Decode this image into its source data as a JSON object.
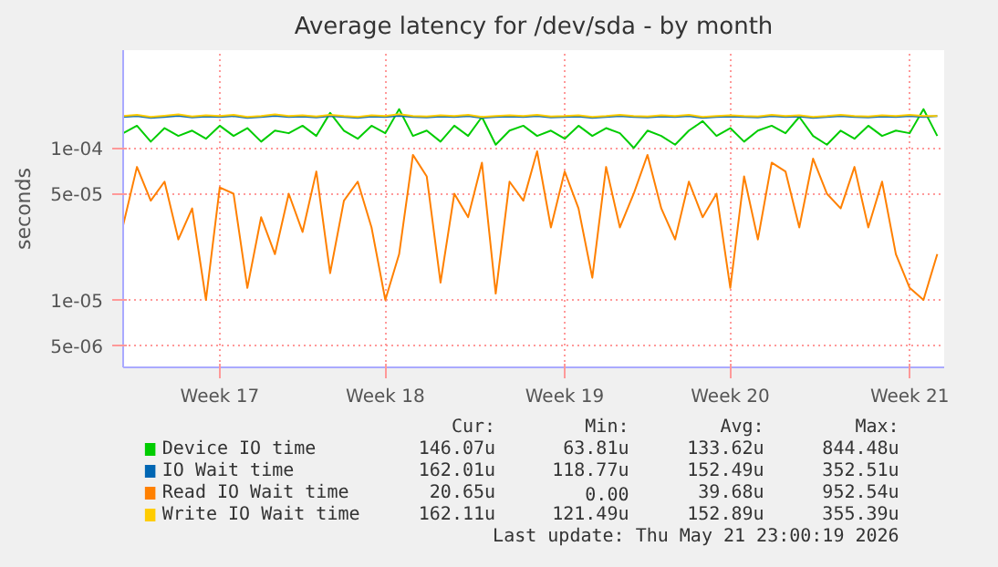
{
  "chart_data": {
    "type": "line",
    "title": "Average latency for /dev/sda - by month",
    "ylabel": "seconds",
    "categories": [
      null,
      null,
      null,
      null,
      null,
      null,
      null,
      "Week 17",
      null,
      null,
      null,
      null,
      null,
      null,
      null,
      null,
      null,
      null,
      null,
      "Week 18",
      null,
      null,
      null,
      null,
      null,
      null,
      null,
      null,
      null,
      null,
      null,
      null,
      "Week 19",
      null,
      null,
      null,
      null,
      null,
      null,
      null,
      null,
      null,
      null,
      null,
      "Week 20",
      null,
      null,
      null,
      null,
      null,
      null,
      null,
      null,
      null,
      null,
      null,
      null,
      "Week 21",
      null,
      null
    ],
    "series": [
      {
        "name": "Device IO time",
        "color": "#00cc00",
        "values": [
          0.000125,
          0.00014,
          0.00011,
          0.000135,
          0.00012,
          0.00013,
          0.000115,
          0.00014,
          0.00012,
          0.000135,
          0.00011,
          0.00013,
          0.000125,
          0.00014,
          0.00012,
          0.00017,
          0.00013,
          0.000115,
          0.00014,
          0.000125,
          0.00018,
          0.00012,
          0.00013,
          0.00011,
          0.00014,
          0.00012,
          0.00016,
          0.000105,
          0.00013,
          0.00014,
          0.00012,
          0.00013,
          0.000115,
          0.00014,
          0.00012,
          0.000135,
          0.000125,
          0.0001,
          0.00013,
          0.00012,
          0.000105,
          0.00013,
          0.00015,
          0.00012,
          0.000135,
          0.00011,
          0.00013,
          0.00014,
          0.000125,
          0.00016,
          0.00012,
          0.000105,
          0.00013,
          0.000115,
          0.00014,
          0.00012,
          0.00013,
          0.000125,
          0.00018,
          0.00012
        ]
      },
      {
        "name": "IO Wait time",
        "color": "#0066b3",
        "values": [
          0.00016,
          0.000162,
          0.000158,
          0.00016,
          0.000163,
          0.000159,
          0.000161,
          0.00016,
          0.000162,
          0.000158,
          0.00016,
          0.000163,
          0.00016,
          0.000161,
          0.000159,
          0.000162,
          0.00016,
          0.000158,
          0.000161,
          0.00016,
          0.000163,
          0.00016,
          0.000159,
          0.000161,
          0.00016,
          0.000162,
          0.000158,
          0.00016,
          0.000161,
          0.00016,
          0.000162,
          0.000159,
          0.00016,
          0.000161,
          0.000158,
          0.00016,
          0.000162,
          0.00016,
          0.000159,
          0.000161,
          0.00016,
          0.000162,
          0.000158,
          0.00016,
          0.000161,
          0.00016,
          0.000159,
          0.000162,
          0.00016,
          0.000161,
          0.000158,
          0.00016,
          0.000162,
          0.00016,
          0.000159,
          0.000161,
          0.00016,
          0.000162,
          0.00016,
          0.000162
        ]
      },
      {
        "name": "Read IO Wait time",
        "color": "#ff8000",
        "values": [
          3.1e-05,
          7.5e-05,
          4.5e-05,
          6e-05,
          2.5e-05,
          4e-05,
          1e-05,
          5.5e-05,
          5e-05,
          1.2e-05,
          3.5e-05,
          2e-05,
          5e-05,
          2.8e-05,
          7e-05,
          1.5e-05,
          4.5e-05,
          6e-05,
          3e-05,
          1e-05,
          2e-05,
          9e-05,
          6.5e-05,
          1.3e-05,
          5e-05,
          3.5e-05,
          8e-05,
          1.1e-05,
          6e-05,
          4.5e-05,
          9.5e-05,
          3e-05,
          7e-05,
          4e-05,
          1.4e-05,
          7.5e-05,
          3e-05,
          5e-05,
          9e-05,
          4e-05,
          2.5e-05,
          6e-05,
          3.5e-05,
          5e-05,
          1.2e-05,
          6.5e-05,
          2.5e-05,
          8e-05,
          7e-05,
          3e-05,
          8.5e-05,
          5e-05,
          4e-05,
          7.5e-05,
          3e-05,
          6e-05,
          2e-05,
          1.2e-05,
          1e-05,
          2e-05
        ]
      },
      {
        "name": "Write IO Wait time",
        "color": "#ffcc00",
        "values": [
          0.000162,
          0.000165,
          0.00016,
          0.000163,
          0.000166,
          0.000161,
          0.000164,
          0.000162,
          0.000165,
          0.00016,
          0.000162,
          0.000166,
          0.000162,
          0.000164,
          0.000161,
          0.000165,
          0.000162,
          0.00016,
          0.000164,
          0.000162,
          0.000167,
          0.000162,
          0.000161,
          0.000164,
          0.000162,
          0.000165,
          0.00016,
          0.000162,
          0.000164,
          0.000162,
          0.000165,
          0.000161,
          0.000162,
          0.000164,
          0.00016,
          0.000162,
          0.000165,
          0.000162,
          0.000161,
          0.000164,
          0.000162,
          0.000165,
          0.00016,
          0.000162,
          0.000164,
          0.000162,
          0.000161,
          0.000165,
          0.000162,
          0.000164,
          0.00016,
          0.000162,
          0.000165,
          0.000162,
          0.000161,
          0.000164,
          0.000162,
          0.000165,
          0.000162,
          0.000162
        ]
      }
    ],
    "log": "y",
    "grid": true,
    "legend": "bottom",
    "ylim": [
      3.6e-06,
      0.00044
    ],
    "yticks": [
      {
        "value": 5e-06,
        "label": "5e-06"
      },
      {
        "value": 1e-05,
        "label": "1e-05"
      },
      {
        "value": 5e-05,
        "label": "5e-05"
      },
      {
        "value": 0.0001,
        "label": "1e-04"
      }
    ],
    "annotations": [
      "Cur:",
      "Min:",
      "Avg:",
      "Max:",
      "146.07u",
      "63.81u",
      "133.62u",
      "844.48u",
      "162.01u",
      "118.77u",
      "152.49u",
      "352.51u",
      "20.65u",
      "0.00",
      "39.68u",
      "952.54u",
      "162.11u",
      "121.49u",
      "152.89u",
      "355.39u",
      "Last update: Thu May 21 23:00:19 2026"
    ]
  }
}
